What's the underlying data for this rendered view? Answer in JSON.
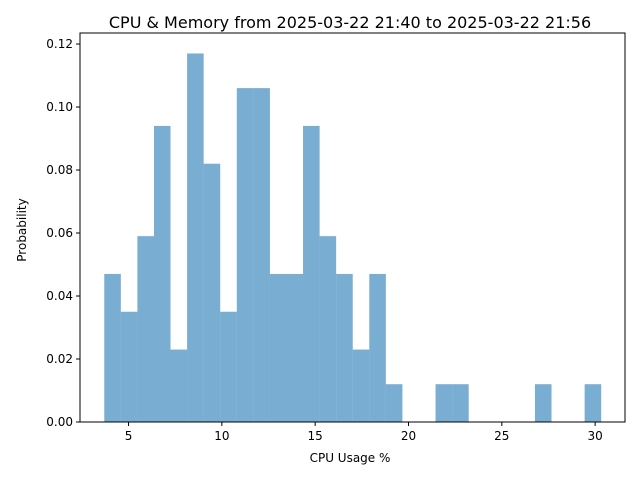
{
  "chart_data": {
    "type": "bar",
    "histogram": true,
    "title": "CPU & Memory from 2025-03-22 21:40 to 2025-03-22 21:56",
    "xlabel": "CPU Usage %",
    "ylabel": "Probability",
    "xlim": [
      2.4,
      31.6
    ],
    "ylim": [
      0,
      0.1235
    ],
    "xticks": [
      5,
      10,
      15,
      20,
      25,
      30
    ],
    "yticks": [
      0.0,
      0.02,
      0.04,
      0.06,
      0.08,
      0.1,
      0.12
    ],
    "ytick_labels": [
      "0.00",
      "0.02",
      "0.04",
      "0.06",
      "0.08",
      "0.10",
      "0.12"
    ],
    "grid": false,
    "bar_color": "#1f77b4",
    "bar_alpha": 0.6,
    "bin_start": 3.7,
    "bin_width": 0.8875,
    "values": [
      0.047,
      0.035,
      0.059,
      0.094,
      0.023,
      0.117,
      0.082,
      0.035,
      0.106,
      0.106,
      0.047,
      0.047,
      0.094,
      0.059,
      0.047,
      0.023,
      0.047,
      0.012,
      0.0,
      0.0,
      0.012,
      0.012,
      0.0,
      0.0,
      0.0,
      0.0,
      0.012,
      0.0,
      0.0,
      0.012
    ]
  }
}
